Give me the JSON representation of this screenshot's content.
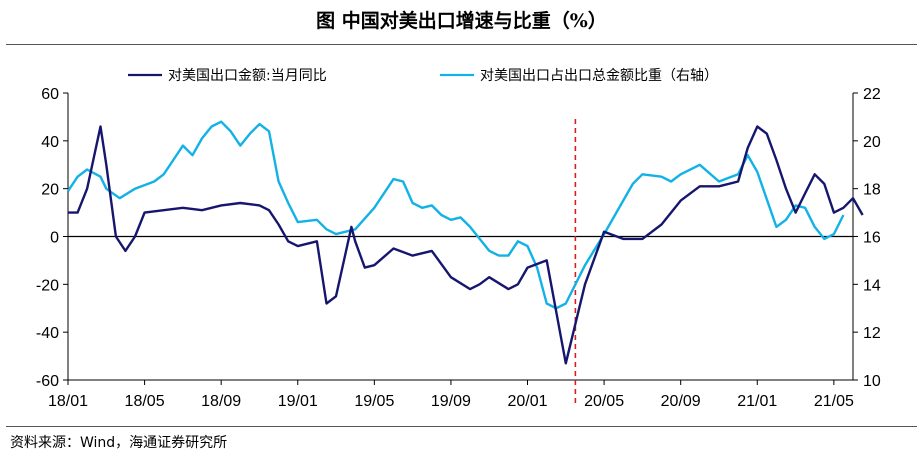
{
  "title": "图  中国对美出口增速与比重（%）",
  "source": "资料来源：Wind，海通证券研究所",
  "colors": {
    "series1": "#16166e",
    "series2": "#12b2e6",
    "marker": "#d62020",
    "axis": "#000000"
  },
  "chart_data": {
    "type": "line",
    "x_tick_labels": [
      "18/01",
      "18/05",
      "18/09",
      "19/01",
      "19/05",
      "19/09",
      "20/01",
      "20/05",
      "20/09",
      "21/01",
      "21/05"
    ],
    "x_tick_months": [
      0,
      4,
      8,
      12,
      16,
      20,
      24,
      28,
      32,
      36,
      40
    ],
    "x_range": [
      0,
      41
    ],
    "y_left": {
      "min": -60,
      "max": 60,
      "step": 20,
      "ticks": [
        "60",
        "40",
        "20",
        "0",
        "-20",
        "-40",
        "-60"
      ]
    },
    "y_right": {
      "min": 10,
      "max": 22,
      "step": 2,
      "ticks": [
        "22",
        "20",
        "18",
        "16",
        "14",
        "12",
        "10"
      ]
    },
    "series": [
      {
        "name": "对美国出口金额:当月同比",
        "axis": "left",
        "months": [
          0,
          0.5,
          1,
          1.7,
          2,
          2.5,
          3,
          3.5,
          4,
          5,
          6,
          7,
          8,
          9,
          10,
          10.5,
          11,
          11.5,
          12,
          13,
          13.5,
          14,
          14.8,
          15,
          15.5,
          16,
          17,
          18,
          19,
          20,
          21,
          21.5,
          22,
          23,
          23.5,
          24,
          25,
          26,
          27,
          28,
          29,
          30,
          31,
          32,
          33,
          34,
          35,
          35.5,
          36,
          36.5,
          37,
          37.5,
          38,
          38.5,
          39,
          39.5,
          40,
          40.5
        ],
        "values": [
          10,
          10,
          20,
          46,
          30,
          0,
          -6,
          0,
          10,
          11,
          12,
          11,
          13,
          14,
          13,
          11,
          5,
          -2,
          -4,
          -2,
          -28,
          -25,
          4,
          -2,
          -13,
          -12,
          -5,
          -8,
          -6,
          -17,
          -22,
          -20,
          -17,
          -22,
          -20,
          -13,
          -10,
          -53,
          -20,
          2,
          -1,
          -1,
          5,
          15,
          21,
          21,
          23,
          37,
          46,
          43,
          32,
          20,
          10,
          18,
          26,
          22,
          10,
          12
        ],
        "note_end": [
          [
            41,
            16
          ],
          [
            41.5,
            9
          ]
        ]
      },
      {
        "name": "对美国出口占出口总金额比重（右轴）",
        "axis": "right",
        "months": [
          0,
          0.5,
          1,
          1.7,
          2,
          2.7,
          3.5,
          4.5,
          5,
          5.5,
          6,
          6.5,
          7,
          7.5,
          8,
          8.5,
          9,
          9.5,
          10,
          10.5,
          11,
          11.5,
          12,
          13,
          13.5,
          14,
          15,
          16,
          16.5,
          17,
          17.5,
          18,
          18.5,
          19,
          19.5,
          20,
          20.5,
          21,
          22,
          22.5,
          23,
          23.5,
          24,
          24.5,
          25,
          25.5,
          26,
          27,
          28,
          29,
          29.5,
          30,
          31,
          31.5,
          32,
          33,
          34,
          35,
          35.5,
          36,
          37,
          37.5,
          38,
          38.5,
          39,
          39.5,
          40,
          40.5
        ],
        "values": [
          17.9,
          18.5,
          18.8,
          18.5,
          18.0,
          17.6,
          18.0,
          18.3,
          18.6,
          19.2,
          19.8,
          19.4,
          20.1,
          20.6,
          20.8,
          20.4,
          19.8,
          20.3,
          20.7,
          20.4,
          18.3,
          17.4,
          16.6,
          16.7,
          16.3,
          16.1,
          16.3,
          17.2,
          17.8,
          18.4,
          18.3,
          17.4,
          17.2,
          17.3,
          16.9,
          16.7,
          16.8,
          16.4,
          15.4,
          15.2,
          15.2,
          15.8,
          15.6,
          14.7,
          13.2,
          13.0,
          13.2,
          14.8,
          16.1,
          17.5,
          18.2,
          18.6,
          18.5,
          18.3,
          18.6,
          19.0,
          18.3,
          18.6,
          19.4,
          18.7,
          16.4,
          16.7,
          17.3,
          17.2,
          16.4,
          15.9,
          16.1,
          16.9
        ]
      }
    ],
    "vline_month": 26.5,
    "legend_position": "top"
  }
}
